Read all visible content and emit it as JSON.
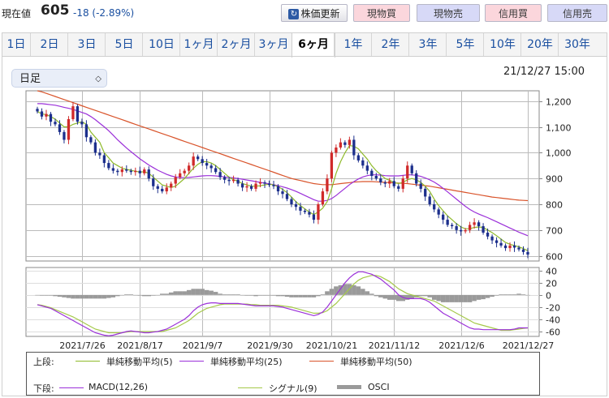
{
  "header": {
    "price_label": "現在値",
    "price_value": "605",
    "price_change": "-18 (-2.89%)",
    "refresh_label": "株価更新",
    "buttons": [
      "現物買",
      "現物売",
      "信用買",
      "信用売"
    ]
  },
  "tabs": [
    "1日",
    "2日",
    "3日",
    "5日",
    "10日",
    "1ヶ月",
    "2ヶ月",
    "3ヶ月",
    "6ヶ月",
    "1年",
    "2年",
    "3年",
    "5年",
    "10年",
    "20年",
    "30年"
  ],
  "active_tab": "6ヶ月",
  "period_select": {
    "value": "日足"
  },
  "datetime": "21/12/27 15:00",
  "colors": {
    "up": "#d02a2a",
    "down": "#1c2f8c",
    "ma5": "#8fba2a",
    "ma25": "#9b30d9",
    "ma50": "#d9542b",
    "macd": "#9b30d9",
    "signal": "#a5c94a",
    "osci": "#9a9a9a"
  },
  "chart_data": [
    {
      "type": "candlestick",
      "title": "",
      "x_tick_labels": [
        "2021/7/26",
        "2021/8/17",
        "2021/9/7",
        "2021/9/30",
        "2021/10/21",
        "2021/11/12",
        "2021/12/6",
        "2021/12/27"
      ],
      "y_ticks": [
        600,
        700,
        800,
        900,
        "1,000",
        "1,100",
        "1,200"
      ],
      "ylim": [
        580,
        1240
      ],
      "close": [
        1160,
        1140,
        1150,
        1120,
        1110,
        1080,
        1050,
        1130,
        1180,
        1120,
        1110,
        1060,
        1040,
        1000,
        990,
        960,
        940,
        930,
        925,
        935,
        930,
        925,
        930,
        920,
        935,
        900,
        870,
        860,
        850,
        865,
        880,
        905,
        920,
        930,
        950,
        985,
        975,
        960,
        950,
        940,
        925,
        905,
        895,
        890,
        895,
        880,
        865,
        870,
        860,
        880,
        885,
        880,
        875,
        870,
        850,
        840,
        820,
        800,
        790,
        775,
        770,
        760,
        740,
        800,
        850,
        900,
        1000,
        1020,
        1040,
        1030,
        1050,
        990,
        970,
        950,
        930,
        910,
        900,
        885,
        880,
        890,
        870,
        860,
        900,
        950,
        920,
        880,
        860,
        830,
        800,
        780,
        760,
        740,
        720,
        715,
        700,
        695,
        700,
        720,
        730,
        715,
        690,
        675,
        660,
        650,
        640,
        630,
        640,
        632,
        625,
        615,
        605
      ],
      "ma5_labels_note": "",
      "ma5": [
        1160,
        1150,
        1148,
        1140,
        1130,
        1115,
        1100,
        1100,
        1110,
        1115,
        1120,
        1110,
        1080,
        1060,
        1040,
        1000,
        980,
        960,
        950,
        940,
        935,
        932,
        928,
        925,
        926,
        920,
        905,
        890,
        875,
        870,
        865,
        870,
        885,
        900,
        920,
        940,
        955,
        965,
        965,
        960,
        950,
        935,
        920,
        905,
        895,
        890,
        880,
        875,
        870,
        870,
        872,
        875,
        878,
        875,
        868,
        858,
        845,
        828,
        810,
        795,
        782,
        770,
        760,
        770,
        785,
        810,
        860,
        920,
        965,
        1000,
        1028,
        1025,
        1015,
        995,
        975,
        950,
        930,
        915,
        900,
        893,
        885,
        880,
        885,
        895,
        900,
        895,
        885,
        870,
        850,
        820,
        795,
        775,
        755,
        740,
        725,
        712,
        705,
        705,
        710,
        712,
        710,
        700,
        690,
        678,
        665,
        652,
        645,
        640,
        635,
        628,
        620
      ],
      "ma25": [
        1190,
        1190,
        1188,
        1186,
        1184,
        1180,
        1176,
        1172,
        1168,
        1162,
        1156,
        1150,
        1140,
        1128,
        1114,
        1100,
        1085,
        1068,
        1050,
        1034,
        1018,
        1004,
        990,
        976,
        964,
        952,
        942,
        932,
        924,
        916,
        910,
        906,
        904,
        903,
        904,
        906,
        908,
        910,
        911,
        911,
        910,
        908,
        906,
        904,
        902,
        900,
        897,
        894,
        891,
        888,
        885,
        882,
        879,
        876,
        872,
        868,
        863,
        857,
        850,
        842,
        834,
        826,
        818,
        812,
        812,
        815,
        822,
        834,
        848,
        862,
        876,
        888,
        898,
        906,
        911,
        914,
        914,
        913,
        911,
        910,
        910,
        910,
        912,
        914,
        914,
        912,
        908,
        902,
        895,
        886,
        875,
        862,
        848,
        834,
        820,
        806,
        792,
        780,
        770,
        762,
        755,
        748,
        740,
        732,
        724,
        716,
        708,
        700,
        692,
        685,
        678
      ],
      "ma50": [
        1240,
        1236,
        1230,
        1224,
        1218,
        1212,
        1206,
        1200,
        1194,
        1188,
        1182,
        1176,
        1170,
        1164,
        1158,
        1152,
        1146,
        1140,
        1134,
        1128,
        1122,
        1116,
        1110,
        1104,
        1098,
        1092,
        1086,
        1080,
        1074,
        1068,
        1062,
        1056,
        1050,
        1044,
        1038,
        1032,
        1026,
        1020,
        1014,
        1008,
        1002,
        996,
        990,
        984,
        978,
        972,
        966,
        960,
        954,
        948,
        942,
        936,
        930,
        924,
        918,
        912,
        906,
        900,
        896,
        892,
        888,
        884,
        880,
        878,
        876,
        876,
        876,
        878,
        880,
        882,
        884,
        886,
        887,
        888,
        888,
        888,
        887,
        886,
        885,
        884,
        883,
        882,
        881,
        880,
        878,
        876,
        874,
        872,
        870,
        867,
        864,
        861,
        858,
        855,
        852,
        849,
        846,
        843,
        840,
        837,
        834,
        831,
        828,
        826,
        824,
        822,
        820,
        818,
        816,
        815,
        814
      ]
    },
    {
      "type": "line",
      "title": "",
      "x_tick_labels": [
        "2021/7/26",
        "2021/8/17",
        "2021/9/7",
        "2021/9/30",
        "2021/10/21",
        "2021/11/12",
        "2021/12/6",
        "2021/12/27"
      ],
      "y_ticks": [
        40,
        20,
        0,
        -20,
        -40,
        -60
      ],
      "ylim": [
        -68,
        45
      ],
      "series": [
        {
          "name": "MACD(12,26)",
          "values": [
            -16,
            -18,
            -20,
            -22,
            -26,
            -30,
            -34,
            -38,
            -42,
            -46,
            -50,
            -54,
            -58,
            -62,
            -64,
            -66,
            -67,
            -66,
            -64,
            -62,
            -60,
            -59,
            -60,
            -61,
            -62,
            -62,
            -61,
            -60,
            -58,
            -56,
            -52,
            -48,
            -44,
            -40,
            -34,
            -26,
            -20,
            -16,
            -14,
            -13,
            -13,
            -14,
            -14,
            -14,
            -14,
            -14,
            -15,
            -16,
            -17,
            -18,
            -18,
            -18,
            -18,
            -18,
            -19,
            -20,
            -22,
            -24,
            -26,
            -28,
            -30,
            -32,
            -34,
            -32,
            -28,
            -20,
            -10,
            0,
            10,
            20,
            28,
            34,
            38,
            38,
            36,
            34,
            30,
            26,
            20,
            14,
            8,
            0,
            -4,
            -6,
            -6,
            -6,
            -6,
            -8,
            -12,
            -18,
            -24,
            -30,
            -34,
            -38,
            -42,
            -46,
            -50,
            -54,
            -56,
            -56,
            -57,
            -57,
            -57,
            -57,
            -57,
            -57,
            -57,
            -56,
            -54,
            -54,
            -54
          ]
        },
        {
          "name": "シグナル(9)",
          "values": [
            -16,
            -17,
            -19,
            -21,
            -24,
            -27,
            -30,
            -33,
            -36,
            -40,
            -44,
            -48,
            -52,
            -56,
            -58,
            -60,
            -62,
            -62,
            -62,
            -62,
            -61,
            -60,
            -60,
            -60,
            -60,
            -60,
            -60,
            -60,
            -60,
            -58,
            -56,
            -54,
            -50,
            -46,
            -42,
            -36,
            -30,
            -26,
            -22,
            -20,
            -18,
            -16,
            -15,
            -15,
            -15,
            -15,
            -15,
            -15,
            -16,
            -16,
            -17,
            -17,
            -17,
            -17,
            -17,
            -18,
            -19,
            -20,
            -22,
            -24,
            -26,
            -28,
            -30,
            -30,
            -29,
            -26,
            -20,
            -14,
            -6,
            2,
            10,
            18,
            24,
            28,
            30,
            32,
            32,
            30,
            26,
            22,
            16,
            10,
            6,
            2,
            0,
            -2,
            -4,
            -6,
            -8,
            -10,
            -14,
            -18,
            -22,
            -26,
            -30,
            -34,
            -38,
            -42,
            -46,
            -48,
            -50,
            -52,
            -54,
            -56,
            -58,
            -58,
            -58,
            -57,
            -56,
            -55,
            -54
          ]
        },
        {
          "name": "OSCI",
          "values": [
            0,
            -1,
            -1,
            -1,
            -2,
            -3,
            -4,
            -5,
            -6,
            -6,
            -6,
            -6,
            -6,
            -6,
            -6,
            -6,
            -5,
            -4,
            -2,
            0,
            1,
            1,
            0,
            -1,
            -2,
            -2,
            -1,
            0,
            2,
            2,
            4,
            6,
            6,
            6,
            8,
            10,
            10,
            10,
            8,
            7,
            5,
            2,
            1,
            1,
            1,
            1,
            0,
            -1,
            -1,
            -2,
            -1,
            -1,
            -1,
            -1,
            -2,
            -2,
            -3,
            -4,
            -4,
            -4,
            -4,
            -4,
            -4,
            -2,
            1,
            6,
            10,
            14,
            16,
            18,
            18,
            16,
            14,
            10,
            6,
            2,
            -2,
            -4,
            -6,
            -8,
            -8,
            -10,
            -10,
            -8,
            -6,
            -4,
            -2,
            -2,
            -4,
            -8,
            -10,
            -12,
            -12,
            -12,
            -12,
            -12,
            -12,
            -12,
            -10,
            -8,
            -7,
            -5,
            -3,
            -1,
            1,
            1,
            1,
            1,
            2,
            1,
            0
          ]
        }
      ]
    }
  ],
  "legend": {
    "upper_label": "上段:",
    "lower_label": "下段:",
    "upper_items": [
      "単純移動平均(5)",
      "単純移動平均(25)",
      "単純移動平均(50)"
    ],
    "lower_items": [
      "MACD(12,26)",
      "シグナル(9)",
      "OSCI"
    ]
  }
}
